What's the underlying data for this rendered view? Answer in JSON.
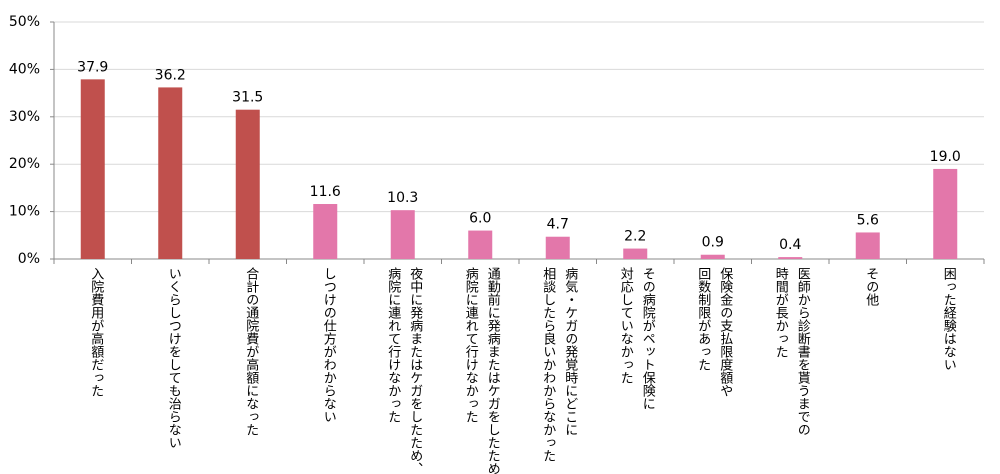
{
  "chart_data": {
    "type": "bar",
    "categories": [
      [
        "入院費用が高額だった"
      ],
      [
        "いくらしつけをしても治らない"
      ],
      [
        "合計の通院費が高額になった"
      ],
      [
        "しつけの仕方がわからない"
      ],
      [
        "夜中に発病またはケガをしたため、",
        "病院に連れて行けなかった"
      ],
      [
        "通勤前に発病またはケガをしたため、",
        "病院に連れて行けなかった"
      ],
      [
        "病気・ケガの発覚時にどこに",
        "相談したら良いかわからなかった"
      ],
      [
        "その病院がペット保険に",
        "対応していなかった"
      ],
      [
        "保険金の支払限度額や",
        "回数制限があった"
      ],
      [
        "医師から診断書を貰うまでの",
        "時間が長かった"
      ],
      [
        "その他"
      ],
      [
        "困った経験はない"
      ]
    ],
    "values": [
      37.9,
      36.2,
      31.5,
      11.6,
      10.3,
      6.0,
      4.7,
      2.2,
      0.9,
      0.4,
      5.6,
      19.0
    ],
    "value_labels": [
      "37.9",
      "36.2",
      "31.5",
      "11.6",
      "10.3",
      "6.0",
      "4.7",
      "2.2",
      "0.9",
      "0.4",
      "5.6",
      "19.0"
    ],
    "colors": [
      "#c0504d",
      "#c0504d",
      "#c0504d",
      "#e377aa",
      "#e377aa",
      "#e377aa",
      "#e377aa",
      "#e377aa",
      "#e377aa",
      "#e377aa",
      "#e377aa",
      "#e377aa"
    ],
    "ylim": [
      0,
      50
    ],
    "yticks": [
      {
        "value": 0,
        "label": "0%"
      },
      {
        "value": 10,
        "label": "10%"
      },
      {
        "value": 20,
        "label": "20%"
      },
      {
        "value": 30,
        "label": "30%"
      },
      {
        "value": 40,
        "label": "40%"
      },
      {
        "value": 50,
        "label": "50%"
      }
    ],
    "grid": true
  }
}
